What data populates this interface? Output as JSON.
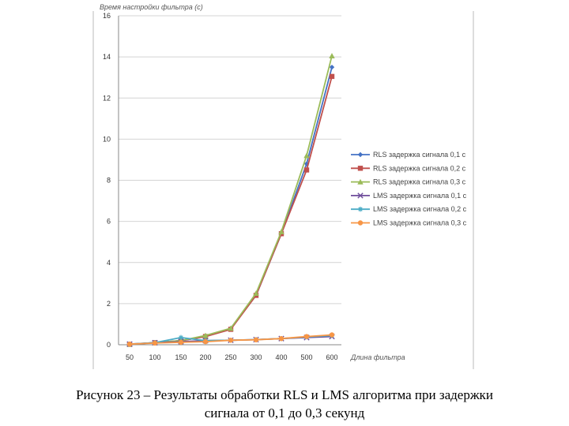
{
  "chart_data": {
    "type": "line",
    "ylabel": "Время настройки фильтра (с)",
    "xlabel": "Длина фильтра",
    "categories": [
      "50",
      "100",
      "150",
      "200",
      "250",
      "300",
      "400",
      "500",
      "600"
    ],
    "ylim": [
      0,
      16
    ],
    "yticks": [
      0,
      2,
      4,
      6,
      8,
      10,
      12,
      14,
      16
    ],
    "grid": true,
    "legend_position": "right",
    "series": [
      {
        "name": "RLS задержка сигнала 0,1 с",
        "color": "#4472c4",
        "marker": "diamond",
        "values": [
          0.02,
          0.1,
          0.2,
          0.4,
          0.8,
          2.4,
          5.4,
          8.8,
          13.5
        ]
      },
      {
        "name": "RLS задержка сигнала 0,2 с",
        "color": "#c0504d",
        "marker": "square",
        "values": [
          0.02,
          0.1,
          0.2,
          0.4,
          0.75,
          2.4,
          5.4,
          8.5,
          13.05
        ]
      },
      {
        "name": "RLS задержка сигнала 0,3 с",
        "color": "#9bbb59",
        "marker": "triangle",
        "values": [
          0.02,
          0.1,
          0.2,
          0.45,
          0.8,
          2.5,
          5.5,
          9.2,
          14.05
        ]
      },
      {
        "name": "LMS задержка сигнала 0,1 с",
        "color": "#6e4d9b",
        "marker": "x",
        "values": [
          0.03,
          0.1,
          0.15,
          0.2,
          0.22,
          0.25,
          0.3,
          0.35,
          0.4
        ]
      },
      {
        "name": "LMS задержка сигнала 0,2 с",
        "color": "#4bacc6",
        "marker": "star",
        "values": [
          0.03,
          0.1,
          0.35,
          0.2,
          0.22,
          0.25,
          0.3,
          0.38,
          0.45
        ]
      },
      {
        "name": "LMS задержка сигнала 0,3 с",
        "color": "#f79646",
        "marker": "circle",
        "values": [
          0.03,
          0.08,
          0.12,
          0.15,
          0.22,
          0.24,
          0.3,
          0.4,
          0.48
        ]
      }
    ]
  },
  "caption": {
    "line1": "Рисунок 23 – Результаты обработки RLS и LMS алгоритма при задержки",
    "line2": "сигнала от 0,1 до 0,3 секунд"
  }
}
